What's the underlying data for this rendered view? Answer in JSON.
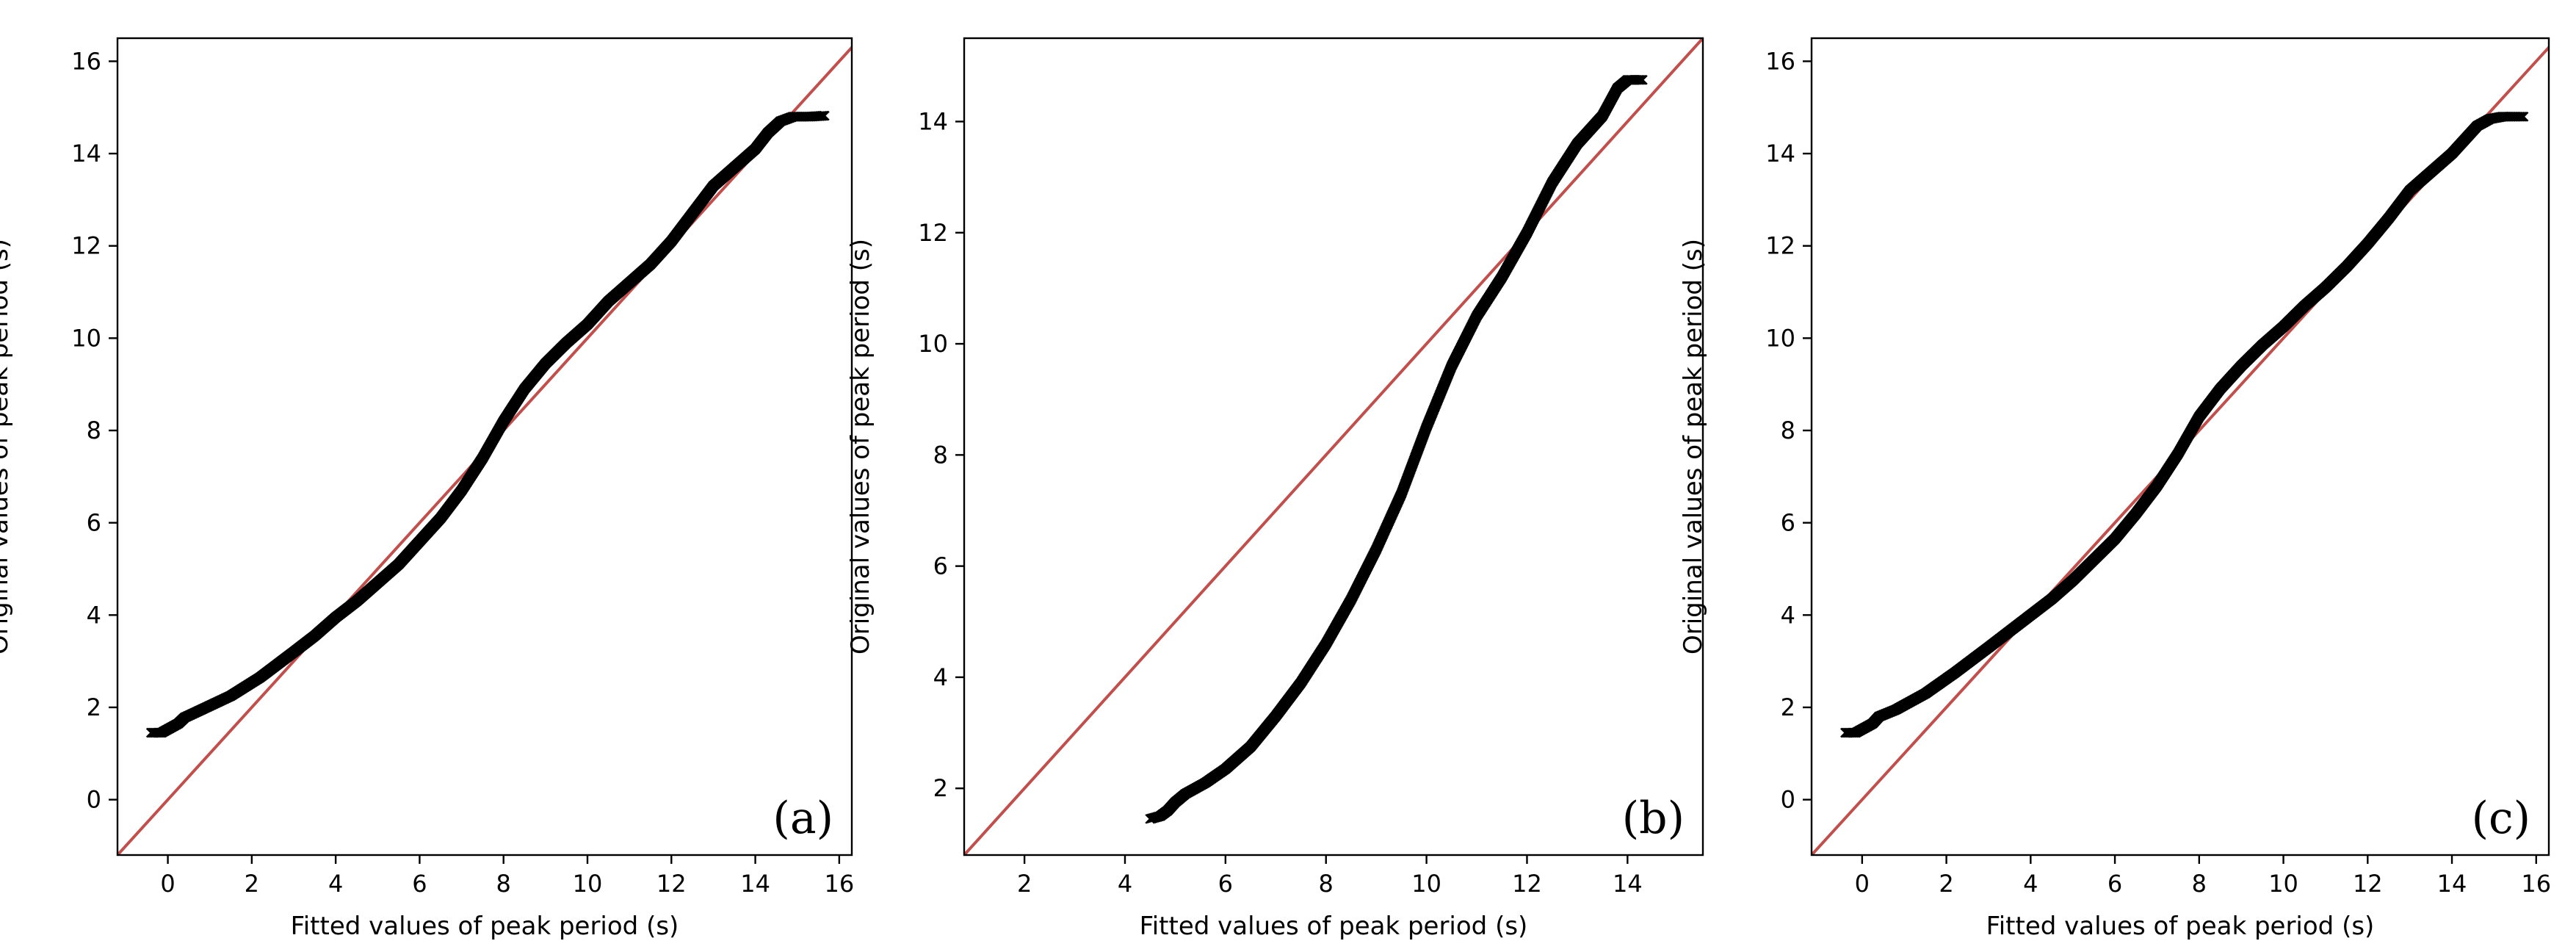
{
  "chart_data": [
    {
      "type": "scatter",
      "panel_label": "(a)",
      "xlabel": "Fitted values of peak period (s)",
      "ylabel": "Original values of peak period (s)",
      "xlim": [
        -1.2,
        16.3
      ],
      "ylim": [
        -1.2,
        16.5
      ],
      "xticks": [
        0,
        2,
        4,
        6,
        8,
        10,
        12,
        14,
        16
      ],
      "yticks": [
        0,
        2,
        4,
        6,
        8,
        10,
        12,
        14,
        16
      ],
      "grid": false,
      "reference_line": {
        "type": "y=x",
        "color": "#c0504d"
      },
      "marker": "x",
      "marker_color": "#000000",
      "points": [
        [
          -0.4,
          1.45
        ],
        [
          -0.15,
          1.45
        ],
        [
          0.05,
          1.55
        ],
        [
          0.25,
          1.65
        ],
        [
          0.4,
          1.78
        ],
        [
          0.8,
          1.95
        ],
        [
          1.5,
          2.25
        ],
        [
          2.2,
          2.65
        ],
        [
          3.0,
          3.2
        ],
        [
          3.5,
          3.55
        ],
        [
          4.0,
          3.95
        ],
        [
          4.5,
          4.3
        ],
        [
          5.0,
          4.7
        ],
        [
          5.5,
          5.1
        ],
        [
          6.0,
          5.6
        ],
        [
          6.5,
          6.1
        ],
        [
          7.0,
          6.7
        ],
        [
          7.5,
          7.4
        ],
        [
          8.0,
          8.2
        ],
        [
          8.5,
          8.9
        ],
        [
          9.0,
          9.45
        ],
        [
          9.5,
          9.9
        ],
        [
          10.0,
          10.3
        ],
        [
          10.5,
          10.8
        ],
        [
          11.0,
          11.2
        ],
        [
          11.5,
          11.6
        ],
        [
          12.0,
          12.1
        ],
        [
          12.5,
          12.7
        ],
        [
          13.0,
          13.3
        ],
        [
          13.5,
          13.7
        ],
        [
          14.0,
          14.1
        ],
        [
          14.3,
          14.45
        ],
        [
          14.6,
          14.7
        ],
        [
          14.9,
          14.8
        ],
        [
          15.1,
          14.8
        ],
        [
          15.3,
          14.8
        ],
        [
          15.65,
          14.82
        ]
      ]
    },
    {
      "type": "scatter",
      "panel_label": "(b)",
      "xlabel": "Fitted values of peak period (s)",
      "ylabel": "Original values of peak period (s)",
      "xlim": [
        0.8,
        15.5
      ],
      "ylim": [
        0.8,
        15.5
      ],
      "xticks": [
        2,
        4,
        6,
        8,
        10,
        12,
        14
      ],
      "yticks": [
        2,
        4,
        6,
        8,
        10,
        12,
        14
      ],
      "grid": false,
      "reference_line": {
        "type": "y=x",
        "color": "#c0504d"
      },
      "marker": "x",
      "marker_color": "#000000",
      "points": [
        [
          4.5,
          1.45
        ],
        [
          4.7,
          1.5
        ],
        [
          4.85,
          1.6
        ],
        [
          5.0,
          1.75
        ],
        [
          5.2,
          1.9
        ],
        [
          5.6,
          2.1
        ],
        [
          6.0,
          2.35
        ],
        [
          6.5,
          2.75
        ],
        [
          7.0,
          3.3
        ],
        [
          7.5,
          3.9
        ],
        [
          8.0,
          4.6
        ],
        [
          8.5,
          5.4
        ],
        [
          9.0,
          6.3
        ],
        [
          9.5,
          7.3
        ],
        [
          10.0,
          8.5
        ],
        [
          10.5,
          9.6
        ],
        [
          11.0,
          10.5
        ],
        [
          11.5,
          11.2
        ],
        [
          12.0,
          12.0
        ],
        [
          12.5,
          12.9
        ],
        [
          13.0,
          13.6
        ],
        [
          13.5,
          14.1
        ],
        [
          13.8,
          14.6
        ],
        [
          14.0,
          14.75
        ],
        [
          14.3,
          14.75
        ]
      ]
    },
    {
      "type": "scatter",
      "panel_label": "(c)",
      "xlabel": "Fitted values of peak period (s)",
      "ylabel": "Original values of peak period (s)",
      "xlim": [
        -1.2,
        16.3
      ],
      "ylim": [
        -1.2,
        16.5
      ],
      "xticks": [
        0,
        2,
        4,
        6,
        8,
        10,
        12,
        14,
        16
      ],
      "yticks": [
        0,
        2,
        4,
        6,
        8,
        10,
        12,
        14,
        16
      ],
      "grid": false,
      "reference_line": {
        "type": "y=x",
        "color": "#c0504d"
      },
      "marker": "x",
      "marker_color": "#000000",
      "points": [
        [
          -0.4,
          1.45
        ],
        [
          -0.15,
          1.45
        ],
        [
          0.05,
          1.55
        ],
        [
          0.25,
          1.65
        ],
        [
          0.4,
          1.8
        ],
        [
          0.8,
          1.95
        ],
        [
          1.5,
          2.3
        ],
        [
          2.2,
          2.75
        ],
        [
          3.0,
          3.3
        ],
        [
          3.5,
          3.65
        ],
        [
          4.0,
          4.0
        ],
        [
          4.5,
          4.35
        ],
        [
          5.0,
          4.75
        ],
        [
          5.5,
          5.2
        ],
        [
          6.0,
          5.65
        ],
        [
          6.5,
          6.2
        ],
        [
          7.0,
          6.8
        ],
        [
          7.5,
          7.5
        ],
        [
          8.0,
          8.3
        ],
        [
          8.5,
          8.9
        ],
        [
          9.0,
          9.4
        ],
        [
          9.5,
          9.85
        ],
        [
          10.0,
          10.25
        ],
        [
          10.5,
          10.7
        ],
        [
          11.0,
          11.1
        ],
        [
          11.5,
          11.55
        ],
        [
          12.0,
          12.05
        ],
        [
          12.5,
          12.6
        ],
        [
          13.0,
          13.2
        ],
        [
          13.5,
          13.6
        ],
        [
          14.0,
          14.0
        ],
        [
          14.3,
          14.3
        ],
        [
          14.6,
          14.6
        ],
        [
          14.9,
          14.75
        ],
        [
          15.2,
          14.8
        ],
        [
          15.4,
          14.8
        ],
        [
          15.7,
          14.8
        ]
      ]
    }
  ]
}
